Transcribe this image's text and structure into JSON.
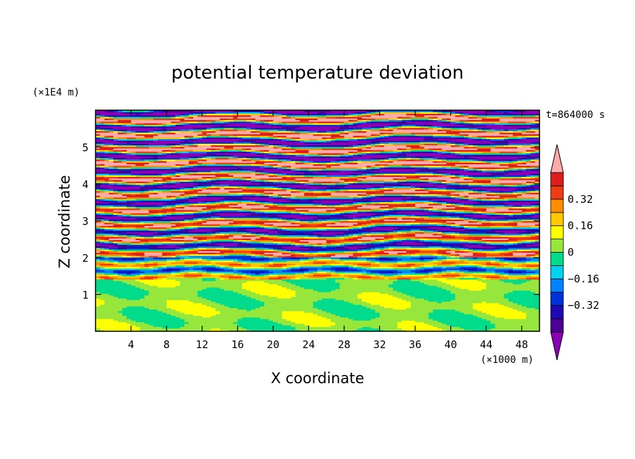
{
  "chart_data": {
    "type": "heatmap",
    "title": "potential temperature deviation",
    "xlabel": "X coordinate",
    "ylabel": "Z coordinate",
    "x_unit": "(×1000 m)",
    "y_unit": "(×1E4 m)",
    "time_label": "t=864000 s",
    "xlim": [
      0,
      50
    ],
    "ylim": [
      0,
      6
    ],
    "x_ticks": [
      4,
      8,
      12,
      16,
      20,
      24,
      28,
      32,
      36,
      40,
      44,
      48
    ],
    "y_ticks": [
      1,
      2,
      3,
      4,
      5
    ],
    "colorbar": {
      "levels": [
        -0.48,
        -0.4,
        -0.32,
        -0.24,
        -0.16,
        -0.08,
        0,
        0.08,
        0.16,
        0.24,
        0.32,
        0.4,
        0.48
      ],
      "colors": [
        "#8b00b4",
        "#4b0096",
        "#1e0ab4",
        "#0032dc",
        "#0082ff",
        "#00d2f0",
        "#00dc8c",
        "#96e63c",
        "#ffff00",
        "#ffc800",
        "#ff8c00",
        "#f03c14",
        "#dc1e1e",
        "#ffaaaa"
      ],
      "tick_labels": [
        "-0.32",
        "-0.16",
        "0",
        "0.16",
        "0.32"
      ],
      "tick_values": [
        -0.32,
        -0.16,
        0,
        0.16,
        0.32
      ]
    },
    "regions": {
      "upper_band_z": [
        2.0,
        6.0
      ],
      "transition_z": [
        1.4,
        2.0
      ],
      "lower_band_z": [
        0.0,
        1.4
      ]
    }
  }
}
